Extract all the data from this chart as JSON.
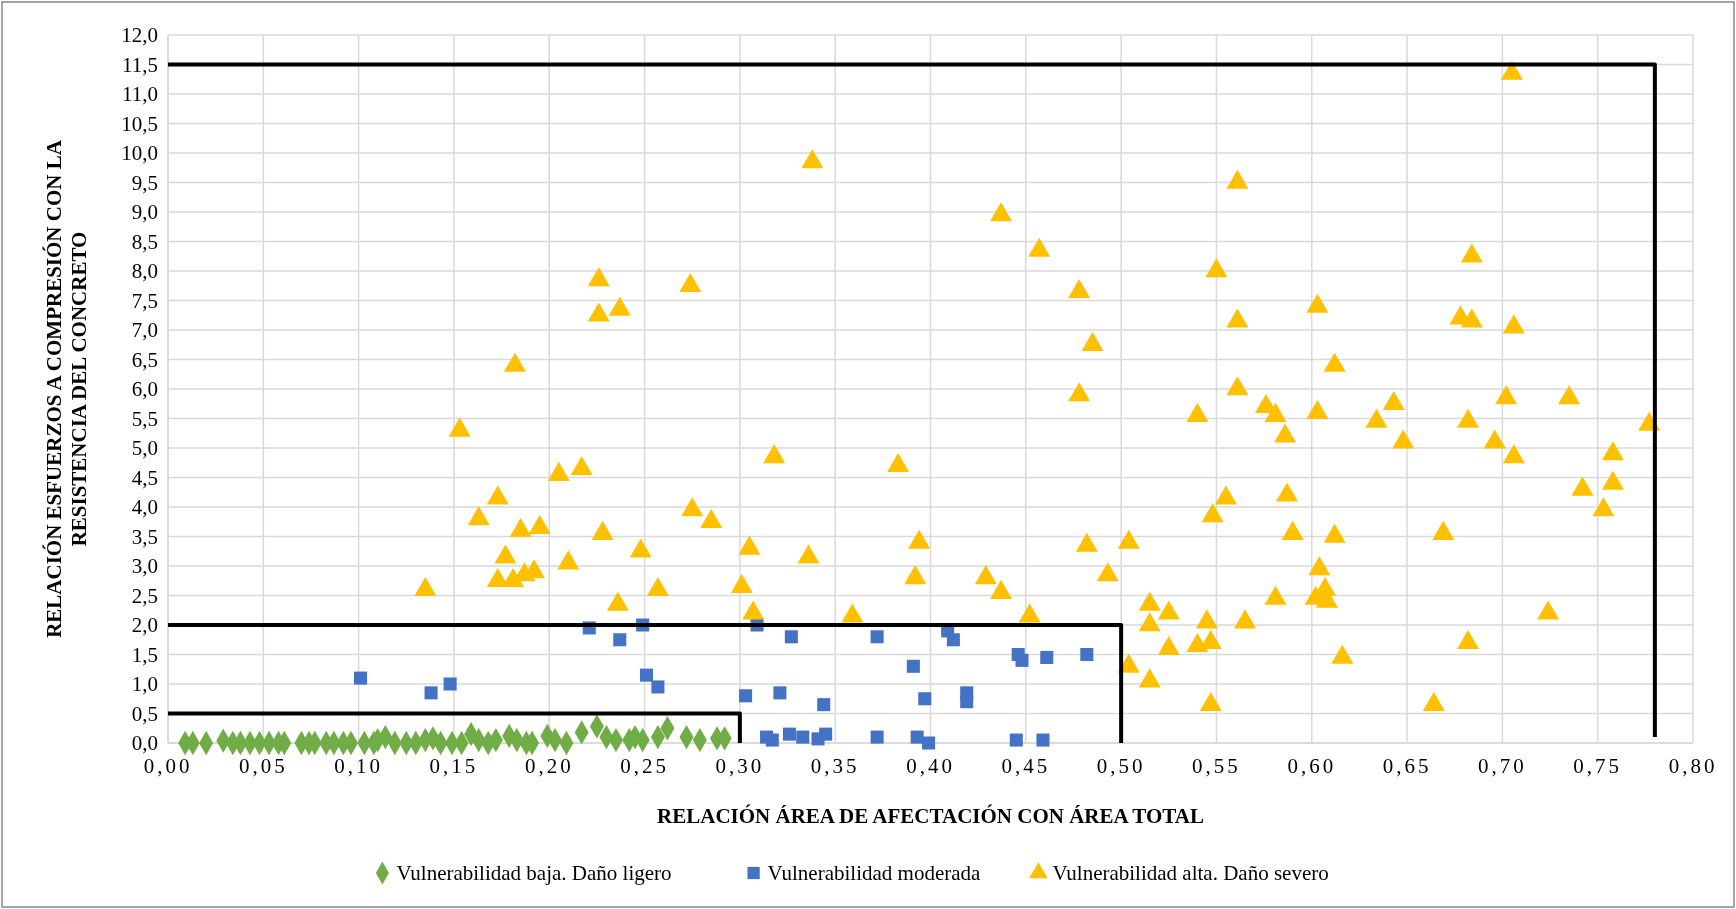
{
  "chart_data": {
    "type": "scatter",
    "xlabel": "RELACIÓN ÁREA DE AFECTACIÓN CON ÁREA TOTAL",
    "ylabel": "RELACIÓN ESFUERZOS A COMPRESIÓN CON LA RESISTENCIA DEL CONCRETO",
    "xlim": [
      0,
      0.8
    ],
    "ylim": [
      0,
      12
    ],
    "xticks": [
      {
        "value": 0,
        "label": "0,00"
      },
      {
        "value": 0.05,
        "label": "0,05"
      },
      {
        "value": 0.1,
        "label": "0,10"
      },
      {
        "value": 0.15,
        "label": "0,15"
      },
      {
        "value": 0.2,
        "label": "0,20"
      },
      {
        "value": 0.25,
        "label": "0,25"
      },
      {
        "value": 0.3,
        "label": "0,30"
      },
      {
        "value": 0.35,
        "label": "0,35"
      },
      {
        "value": 0.4,
        "label": "0,40"
      },
      {
        "value": 0.45,
        "label": "0,45"
      },
      {
        "value": 0.5,
        "label": "0,50"
      },
      {
        "value": 0.55,
        "label": "0,55"
      },
      {
        "value": 0.6,
        "label": "0,60"
      },
      {
        "value": 0.65,
        "label": "0,65"
      },
      {
        "value": 0.7,
        "label": "0,70"
      },
      {
        "value": 0.75,
        "label": "0,75"
      },
      {
        "value": 0.8,
        "label": "0,80"
      }
    ],
    "yticks": [
      {
        "value": 0,
        "label": "0,0"
      },
      {
        "value": 0.5,
        "label": "0,5"
      },
      {
        "value": 1,
        "label": "1,0"
      },
      {
        "value": 1.5,
        "label": "1,5"
      },
      {
        "value": 2,
        "label": "2,0"
      },
      {
        "value": 2.5,
        "label": "2,5"
      },
      {
        "value": 3,
        "label": "3,0"
      },
      {
        "value": 3.5,
        "label": "3,5"
      },
      {
        "value": 4,
        "label": "4,0"
      },
      {
        "value": 4.5,
        "label": "4,5"
      },
      {
        "value": 5,
        "label": "5,0"
      },
      {
        "value": 5.5,
        "label": "5,5"
      },
      {
        "value": 6,
        "label": "6,0"
      },
      {
        "value": 6.5,
        "label": "6,5"
      },
      {
        "value": 7,
        "label": "7,0"
      },
      {
        "value": 7.5,
        "label": "7,5"
      },
      {
        "value": 8,
        "label": "8,0"
      },
      {
        "value": 8.5,
        "label": "8,5"
      },
      {
        "value": 9,
        "label": "9,0"
      },
      {
        "value": 9.5,
        "label": "9,5"
      },
      {
        "value": 10,
        "label": "10,0"
      },
      {
        "value": 10.5,
        "label": "10,5"
      },
      {
        "value": 11,
        "label": "11,0"
      },
      {
        "value": 11.5,
        "label": "11,5"
      },
      {
        "value": 12,
        "label": "12,0"
      }
    ],
    "grid": true,
    "legend": "bottom",
    "series": [
      {
        "name": "Vulnerabilidad baja. Daño ligero",
        "color": "#70ad47",
        "marker": "diamond",
        "x": [
          0.009,
          0.013,
          0.02,
          0.029,
          0.034,
          0.038,
          0.043,
          0.048,
          0.053,
          0.058,
          0.061,
          0.07,
          0.074,
          0.077,
          0.083,
          0.087,
          0.092,
          0.096,
          0.103,
          0.108,
          0.11,
          0.114,
          0.119,
          0.125,
          0.13,
          0.135,
          0.139,
          0.143,
          0.149,
          0.154,
          0.159,
          0.163,
          0.168,
          0.172,
          0.179,
          0.183,
          0.188,
          0.191,
          0.199,
          0.203,
          0.209,
          0.217,
          0.225,
          0.23,
          0.235,
          0.242,
          0.245,
          0.249,
          0.257,
          0.262,
          0.272,
          0.279,
          0.288,
          0.292
        ],
        "values": [
          0,
          0,
          0,
          0.04,
          0,
          0,
          0,
          0,
          0,
          0,
          0,
          0,
          0,
          0,
          0,
          0,
          0,
          0,
          0,
          0,
          0.05,
          0.1,
          0,
          0,
          0,
          0.05,
          0.08,
          0,
          0,
          0,
          0.15,
          0.05,
          0,
          0.05,
          0.12,
          0.05,
          0,
          0,
          0.12,
          0.05,
          0,
          0.18,
          0.28,
          0.1,
          0.05,
          0.05,
          0.1,
          0.05,
          0.1,
          0.25,
          0.1,
          0.05,
          0.08,
          0.08
        ]
      },
      {
        "name": "Vulnerabilidad moderada",
        "color": "#4472c4",
        "marker": "square",
        "x": [
          0.101,
          0.138,
          0.148,
          0.221,
          0.237,
          0.249,
          0.251,
          0.257,
          0.303,
          0.309,
          0.314,
          0.317,
          0.321,
          0.326,
          0.327,
          0.333,
          0.341,
          0.344,
          0.345,
          0.372,
          0.372,
          0.391,
          0.393,
          0.397,
          0.399,
          0.409,
          0.412,
          0.419,
          0.419,
          0.445,
          0.446,
          0.448,
          0.459,
          0.461,
          0.482
        ],
        "values": [
          1.1,
          0.85,
          1.0,
          1.95,
          1.75,
          2.0,
          1.15,
          0.95,
          0.8,
          2.0,
          0.1,
          0.05,
          0.85,
          0.15,
          1.8,
          0.1,
          0.07,
          0.65,
          0.15,
          1.8,
          0.1,
          1.3,
          0.1,
          0.75,
          0.0,
          1.9,
          1.75,
          0.85,
          0.7,
          0.05,
          1.5,
          1.4,
          0.05,
          1.45,
          1.5
        ]
      },
      {
        "name": "Vulnerabilidad alta. Daño severo",
        "color": "#ffc000",
        "marker": "triangle",
        "x": [
          0.135,
          0.153,
          0.163,
          0.173,
          0.173,
          0.177,
          0.181,
          0.182,
          0.185,
          0.187,
          0.192,
          0.195,
          0.205,
          0.21,
          0.217,
          0.226,
          0.226,
          0.228,
          0.236,
          0.237,
          0.248,
          0.257,
          0.274,
          0.275,
          0.285,
          0.301,
          0.305,
          0.307,
          0.318,
          0.336,
          0.338,
          0.359,
          0.383,
          0.392,
          0.394,
          0.429,
          0.437,
          0.437,
          0.452,
          0.457,
          0.478,
          0.478,
          0.482,
          0.485,
          0.493,
          0.504,
          0.504,
          0.515,
          0.515,
          0.515,
          0.525,
          0.525,
          0.54,
          0.54,
          0.545,
          0.547,
          0.547,
          0.548,
          0.55,
          0.555,
          0.561,
          0.561,
          0.561,
          0.565,
          0.576,
          0.581,
          0.581,
          0.586,
          0.587,
          0.59,
          0.603,
          0.603,
          0.604,
          0.602,
          0.607,
          0.608,
          0.612,
          0.612,
          0.616,
          0.634,
          0.643,
          0.648,
          0.664,
          0.669,
          0.678,
          0.682,
          0.682,
          0.684,
          0.684,
          0.696,
          0.702,
          0.705,
          0.706,
          0.706,
          0.724,
          0.735,
          0.742,
          0.753,
          0.758,
          0.758,
          0.777
        ],
        "values": [
          2.6,
          5.3,
          3.8,
          4.15,
          2.75,
          3.15,
          2.75,
          6.4,
          3.6,
          2.85,
          2.9,
          3.65,
          4.55,
          3.05,
          4.65,
          7.85,
          7.25,
          3.55,
          2.35,
          7.35,
          3.25,
          2.6,
          7.75,
          3.95,
          3.75,
          2.65,
          3.3,
          2.2,
          4.85,
          3.15,
          9.85,
          2.15,
          4.7,
          2.8,
          3.4,
          2.8,
          8.95,
          2.55,
          2.15,
          8.35,
          7.65,
          5.9,
          3.35,
          6.75,
          2.85,
          3.4,
          1.3,
          2.35,
          2.0,
          1.05,
          2.2,
          1.6,
          5.55,
          1.65,
          2.05,
          1.7,
          0.65,
          3.85,
          8.0,
          4.15,
          9.5,
          7.15,
          6.0,
          2.05,
          5.7,
          5.55,
          2.45,
          5.2,
          4.2,
          3.55,
          5.6,
          7.4,
          2.95,
          2.45,
          2.6,
          2.4,
          3.5,
          6.4,
          1.45,
          5.45,
          5.75,
          5.1,
          0.65,
          3.55,
          7.2,
          5.45,
          1.7,
          8.25,
          7.15,
          5.1,
          5.85,
          11.35,
          7.05,
          4.85,
          2.2,
          5.85,
          4.3,
          3.95,
          4.9,
          4.4,
          5.4
        ]
      },
      {
        "type": "line",
        "color": "#000000",
        "marker": "none",
        "x": [
          0,
          0.3,
          0.3
        ],
        "values": [
          0.5,
          0.5,
          0
        ]
      },
      {
        "type": "line",
        "color": "#000000",
        "marker": "none",
        "x": [
          0,
          0.5,
          0.5
        ],
        "values": [
          2.0,
          2.0,
          0
        ]
      },
      {
        "type": "line",
        "color": "#000000",
        "marker": "none",
        "x": [
          0,
          0.78,
          0.78
        ],
        "values": [
          11.5,
          11.5,
          0.1
        ]
      }
    ]
  }
}
